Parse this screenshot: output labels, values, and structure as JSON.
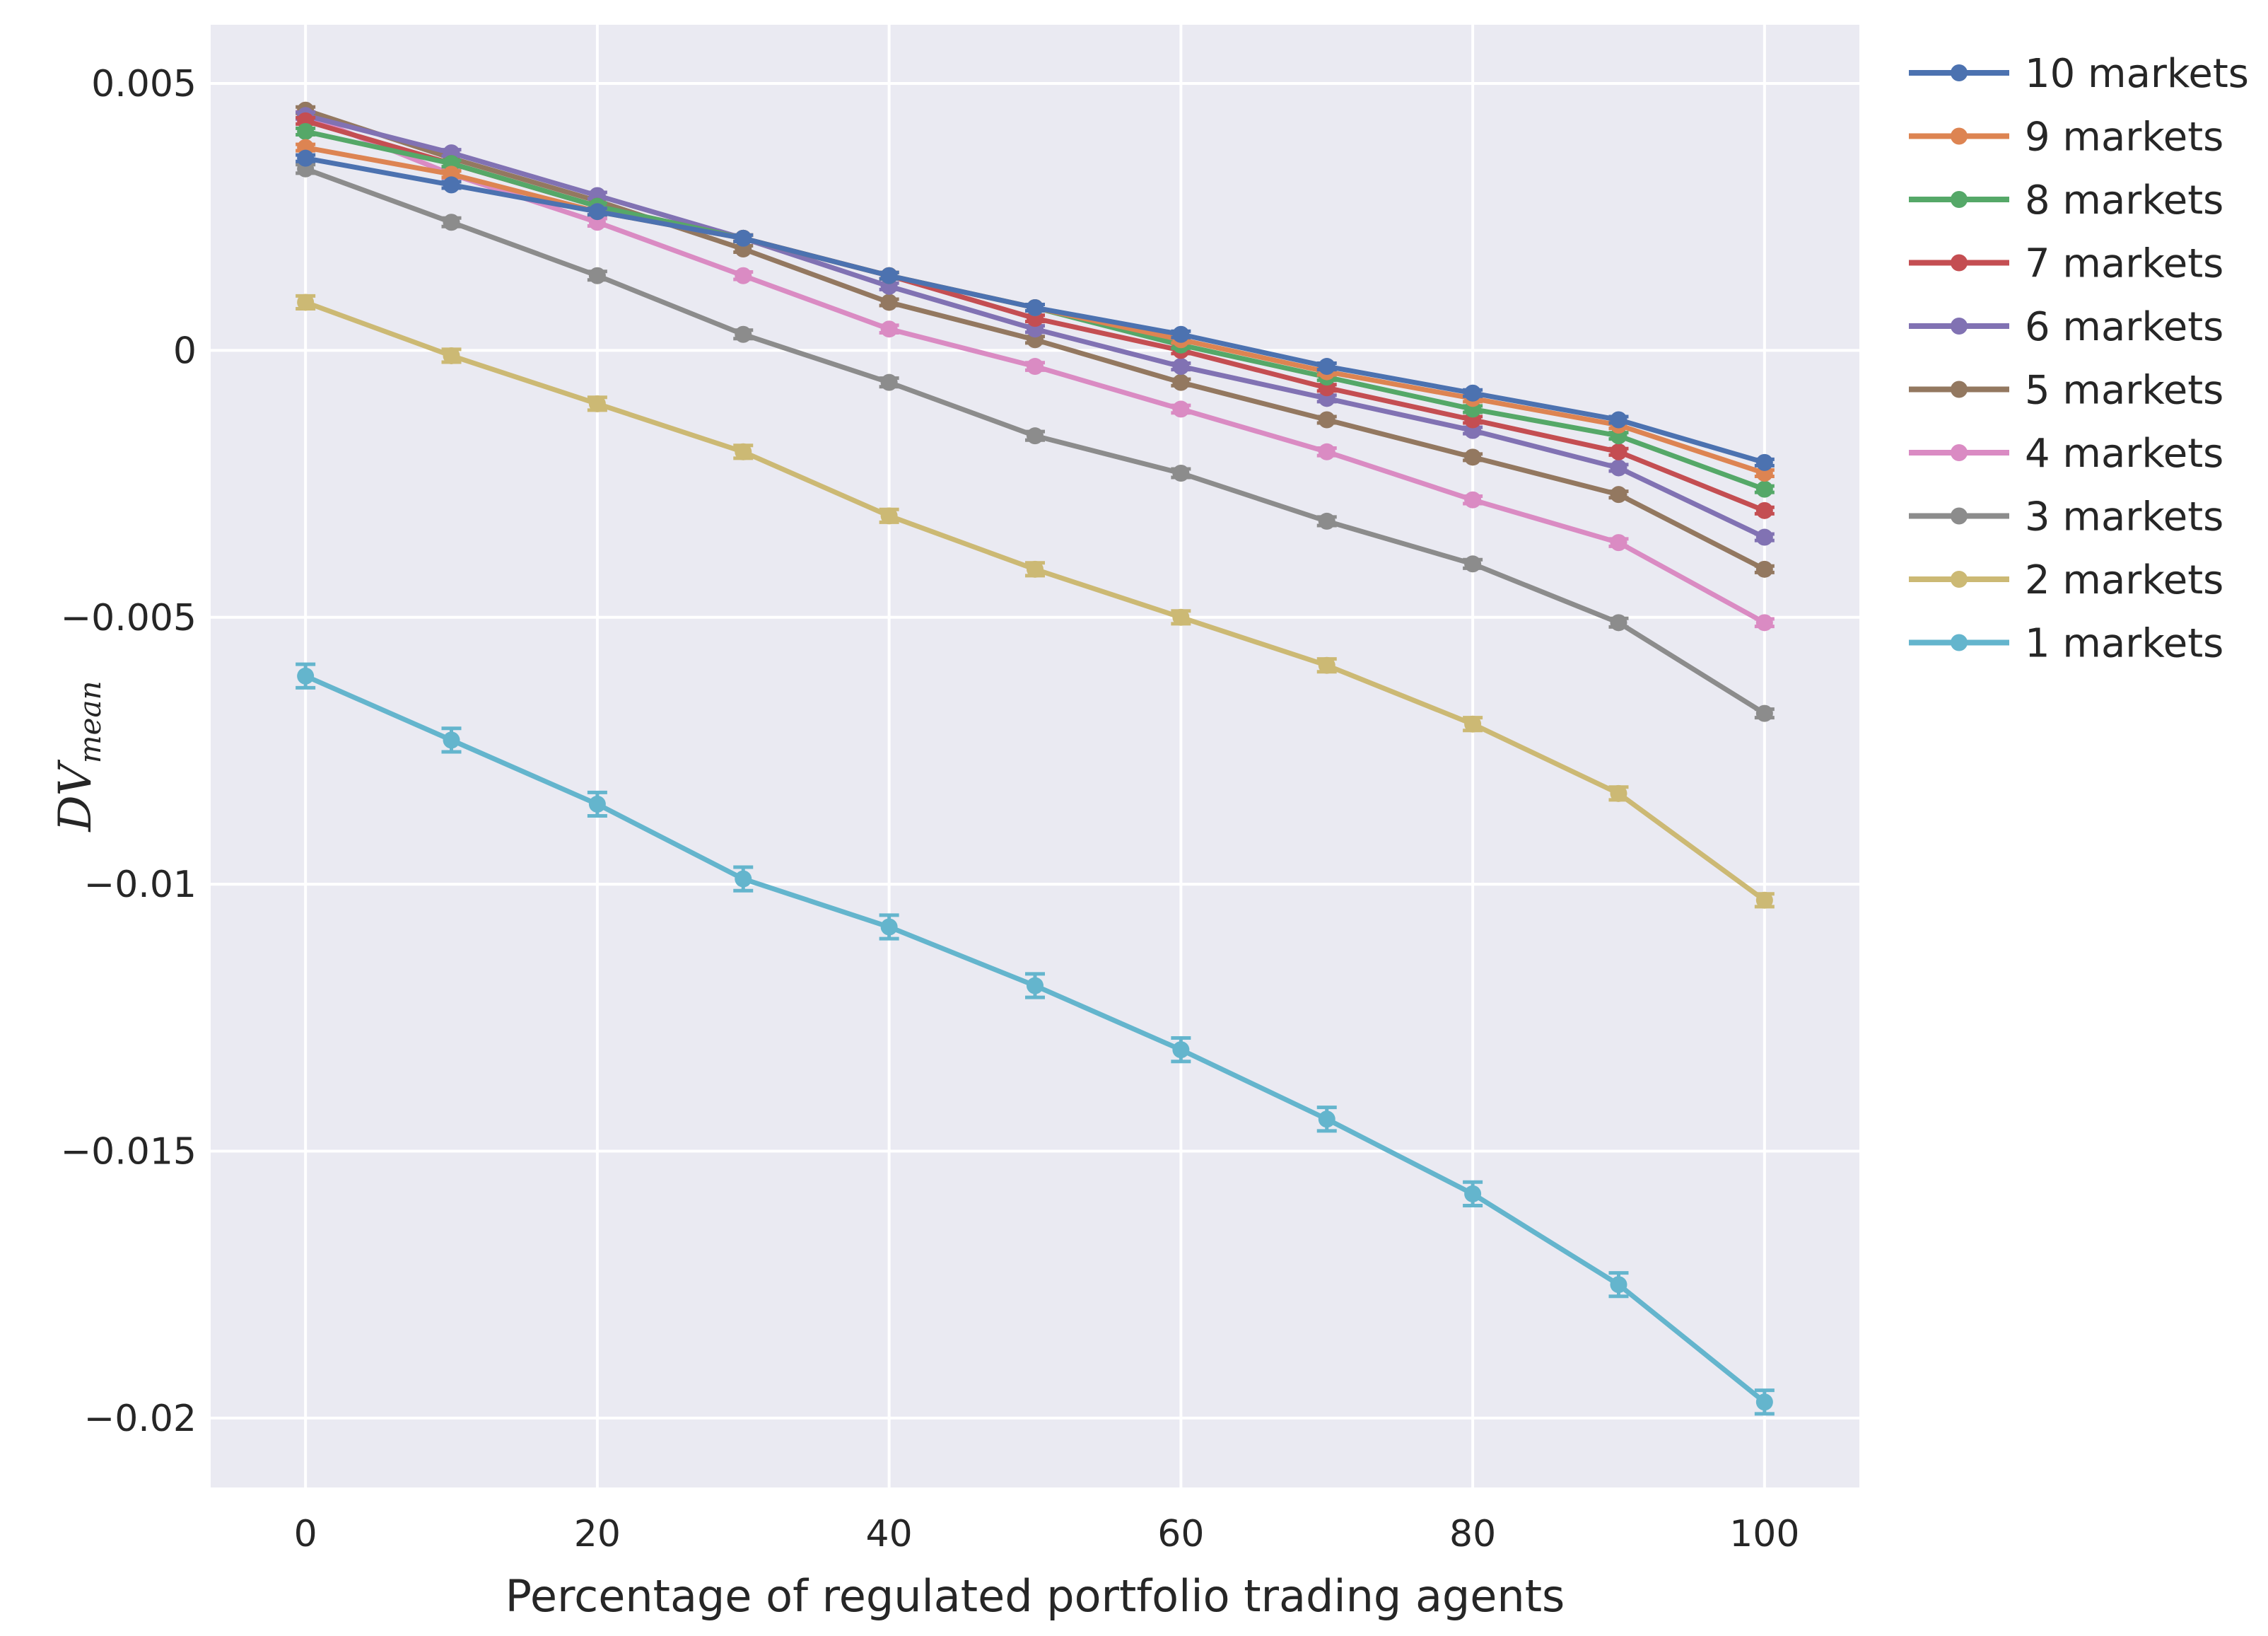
{
  "chart_data": {
    "type": "line",
    "title": "",
    "xlabel": "Percentage of regulated portfolio trading agents",
    "ylabel_main": "DV",
    "ylabel_sub": "mean",
    "xlim": [
      -6.5,
      106.5
    ],
    "ylim": [
      -0.0213,
      0.0061
    ],
    "x": [
      0,
      10,
      20,
      30,
      40,
      50,
      60,
      70,
      80,
      90,
      100
    ],
    "xticks": [
      0,
      20,
      40,
      60,
      80,
      100
    ],
    "xtick_labels": [
      "0",
      "20",
      "40",
      "60",
      "80",
      "100"
    ],
    "yticks": [
      0.005,
      0,
      -0.005,
      -0.01,
      -0.015,
      -0.02
    ],
    "ytick_labels": [
      "0.005",
      "0",
      "−0.005",
      "−0.01",
      "−0.015",
      "−0.02"
    ],
    "grid": true,
    "legend_position": "outside-right",
    "background": "#eaeaf2",
    "series": [
      {
        "name": "10 markets",
        "color": "#4c72b0",
        "err": 6e-05,
        "values": [
          0.0036,
          0.0031,
          0.0026,
          0.0021,
          0.0014,
          0.0008,
          0.0003,
          -0.0003,
          -0.0008,
          -0.0013,
          -0.0021
        ]
      },
      {
        "name": "9 markets",
        "color": "#dd8452",
        "err": 6e-05,
        "values": [
          0.0038,
          0.0033,
          0.0026,
          0.0021,
          0.0014,
          0.0008,
          0.0002,
          -0.0004,
          -0.0009,
          -0.0014,
          -0.0023
        ]
      },
      {
        "name": "8 markets",
        "color": "#55a868",
        "err": 6e-05,
        "values": [
          0.0041,
          0.0035,
          0.0027,
          0.0021,
          0.0014,
          0.0008,
          0.0001,
          -0.0005,
          -0.0011,
          -0.0016,
          -0.0026
        ]
      },
      {
        "name": "7 markets",
        "color": "#c44e52",
        "err": 6e-05,
        "values": [
          0.0043,
          0.0035,
          0.0027,
          0.0021,
          0.0014,
          0.0006,
          0.0,
          -0.0007,
          -0.0013,
          -0.0019,
          -0.003
        ]
      },
      {
        "name": "6 markets",
        "color": "#8172b3",
        "err": 6e-05,
        "values": [
          0.0044,
          0.0037,
          0.0029,
          0.0021,
          0.0012,
          0.0004,
          -0.0003,
          -0.0009,
          -0.0015,
          -0.0022,
          -0.0035
        ]
      },
      {
        "name": "5 markets",
        "color": "#937860",
        "err": 6e-05,
        "values": [
          0.0045,
          0.0036,
          0.0028,
          0.0019,
          0.0009,
          0.0002,
          -0.0006,
          -0.0013,
          -0.002,
          -0.0027,
          -0.0041
        ]
      },
      {
        "name": "4 markets",
        "color": "#da8bc3",
        "err": 7e-05,
        "values": [
          0.0044,
          0.0033,
          0.0024,
          0.0014,
          0.0004,
          -0.0003,
          -0.0011,
          -0.0019,
          -0.0028,
          -0.0036,
          -0.0051
        ]
      },
      {
        "name": "3 markets",
        "color": "#8c8c8c",
        "err": 8e-05,
        "values": [
          0.0034,
          0.0024,
          0.0014,
          0.0003,
          -0.0006,
          -0.0016,
          -0.0023,
          -0.0032,
          -0.004,
          -0.0051,
          -0.0068
        ]
      },
      {
        "name": "2 markets",
        "color": "#ccb974",
        "err": 0.00012,
        "values": [
          0.0009,
          -0.0001,
          -0.001,
          -0.0019,
          -0.0031,
          -0.0041,
          -0.005,
          -0.0059,
          -0.007,
          -0.0083,
          -0.0103
        ]
      },
      {
        "name": "1 markets",
        "color": "#64b5cd",
        "err": 0.00022,
        "values": [
          -0.0061,
          -0.0073,
          -0.0085,
          -0.0099,
          -0.0108,
          -0.0119,
          -0.0131,
          -0.0144,
          -0.0158,
          -0.0175,
          -0.0197
        ]
      }
    ]
  }
}
